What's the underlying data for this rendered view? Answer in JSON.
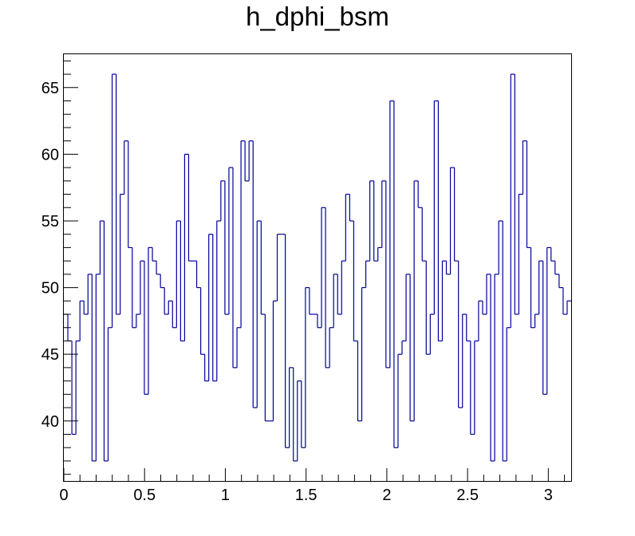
{
  "chart_data": {
    "type": "histogram",
    "title": "h_dphi_bsm",
    "xlabel": "",
    "ylabel": "",
    "xlim": [
      0,
      3.1416
    ],
    "ylim": [
      35.5,
      67.5
    ],
    "grid": false,
    "line_color": "#000099",
    "x_ticks": [
      {
        "value": 0,
        "label": "0"
      },
      {
        "value": 0.5,
        "label": "0.5"
      },
      {
        "value": 1,
        "label": "1"
      },
      {
        "value": 1.5,
        "label": "1.5"
      },
      {
        "value": 2,
        "label": "2"
      },
      {
        "value": 2.5,
        "label": "2.5"
      },
      {
        "value": 3,
        "label": "3"
      }
    ],
    "y_ticks": [
      {
        "value": 40,
        "label": "40"
      },
      {
        "value": 45,
        "label": "45"
      },
      {
        "value": 50,
        "label": "50"
      },
      {
        "value": 55,
        "label": "55"
      },
      {
        "value": 60,
        "label": "60"
      },
      {
        "value": 65,
        "label": "65"
      }
    ],
    "nbins": 126,
    "values": [
      48,
      46,
      39,
      46,
      49,
      48,
      51,
      37,
      51,
      55,
      37,
      47,
      66,
      48,
      57,
      61,
      53,
      47,
      48,
      52,
      42,
      53,
      52,
      51,
      50,
      48,
      49,
      47,
      55,
      46,
      60,
      52,
      52,
      50,
      45,
      43,
      54,
      43,
      55,
      58,
      48,
      59,
      44,
      47,
      61,
      58,
      61,
      41,
      55,
      48,
      40,
      40,
      49,
      54,
      54,
      38,
      44,
      37,
      43,
      38,
      50,
      48,
      48,
      47,
      56,
      44,
      47,
      51,
      48,
      52,
      57,
      55,
      46,
      40,
      50,
      52,
      58,
      52,
      53,
      58,
      44,
      64,
      38,
      45,
      46,
      51,
      40,
      58,
      56,
      52,
      45,
      48,
      64,
      46,
      52,
      51,
      59,
      52,
      41,
      48,
      46,
      39,
      46,
      49,
      48,
      51,
      37,
      51,
      55,
      37,
      47,
      66,
      48,
      57,
      61,
      53,
      47,
      48,
      52,
      42,
      53,
      52,
      51,
      50,
      48,
      49
    ]
  }
}
